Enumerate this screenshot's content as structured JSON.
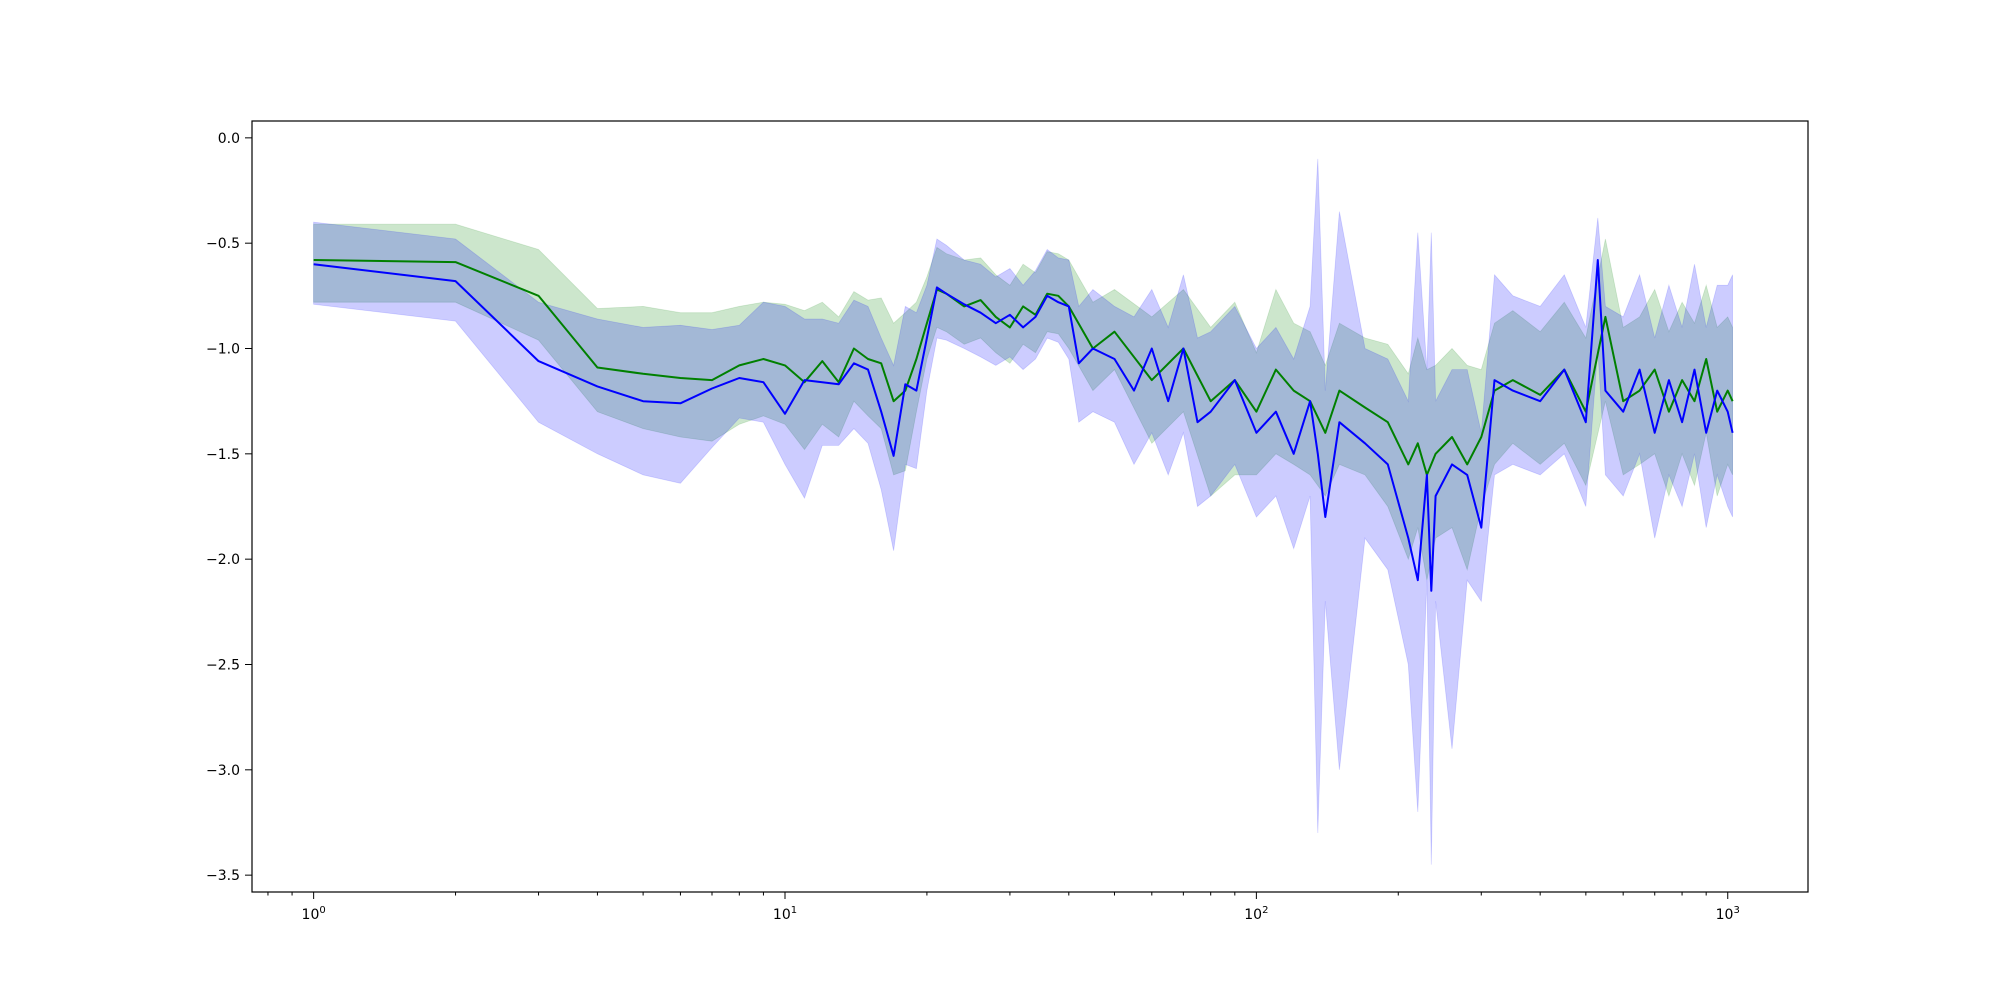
{
  "chart_data": {
    "type": "line",
    "title": "",
    "xlabel": "",
    "ylabel": "",
    "xscale": "log",
    "xlim": [
      0.74,
      1480
    ],
    "ylim": [
      -3.58,
      0.08
    ],
    "grid": false,
    "x_ticks": [
      {
        "value": 1,
        "mantissa": "10",
        "exp": "0"
      },
      {
        "value": 10,
        "mantissa": "10",
        "exp": "1"
      },
      {
        "value": 100,
        "mantissa": "10",
        "exp": "2"
      },
      {
        "value": 1000,
        "mantissa": "10",
        "exp": "3"
      }
    ],
    "y_ticks": [
      {
        "value": 0.0,
        "label": "0.0"
      },
      {
        "value": -0.5,
        "label": "−0.5"
      },
      {
        "value": -1.0,
        "label": "−1.0"
      },
      {
        "value": -1.5,
        "label": "−1.5"
      },
      {
        "value": -2.0,
        "label": "−2.0"
      },
      {
        "value": -2.5,
        "label": "−2.5"
      },
      {
        "value": -3.0,
        "label": "−3.0"
      },
      {
        "value": -3.5,
        "label": "−3.5"
      }
    ],
    "series": [
      {
        "color": "#008000",
        "band_color": "#008000",
        "band_opacity": 0.2,
        "x": [
          1,
          2,
          3,
          4,
          5,
          6,
          7,
          8,
          9,
          10,
          11,
          12,
          13,
          14,
          15,
          16,
          17,
          18,
          19,
          20,
          21,
          22,
          24,
          26,
          28,
          30,
          32,
          34,
          36,
          38,
          40,
          45,
          50,
          60,
          70,
          80,
          90,
          100,
          110,
          120,
          130,
          140,
          150,
          170,
          190,
          210,
          220,
          230,
          240,
          260,
          280,
          300,
          320,
          350,
          400,
          450,
          500,
          550,
          600,
          650,
          700,
          750,
          800,
          850,
          900,
          950,
          1000,
          1024
        ],
        "y": [
          -0.58,
          -0.59,
          -0.75,
          -1.09,
          -1.12,
          -1.14,
          -1.15,
          -1.08,
          -1.05,
          -1.08,
          -1.16,
          -1.06,
          -1.16,
          -1.0,
          -1.05,
          -1.07,
          -1.25,
          -1.2,
          -1.05,
          -0.88,
          -0.72,
          -0.74,
          -0.8,
          -0.77,
          -0.85,
          -0.9,
          -0.8,
          -0.84,
          -0.74,
          -0.75,
          -0.8,
          -1.0,
          -0.92,
          -1.15,
          -1.0,
          -1.25,
          -1.15,
          -1.3,
          -1.1,
          -1.2,
          -1.25,
          -1.4,
          -1.2,
          -1.28,
          -1.35,
          -1.55,
          -1.45,
          -1.6,
          -1.5,
          -1.42,
          -1.55,
          -1.42,
          -1.2,
          -1.15,
          -1.22,
          -1.1,
          -1.3,
          -0.85,
          -1.25,
          -1.2,
          -1.1,
          -1.3,
          -1.15,
          -1.25,
          -1.05,
          -1.3,
          -1.2,
          -1.25
        ],
        "lower": [
          -0.78,
          -0.78,
          -0.96,
          -1.3,
          -1.38,
          -1.42,
          -1.44,
          -1.36,
          -1.32,
          -1.36,
          -1.48,
          -1.36,
          -1.42,
          -1.25,
          -1.32,
          -1.38,
          -1.6,
          -1.58,
          -1.3,
          -1.05,
          -0.9,
          -0.92,
          -0.98,
          -0.95,
          -1.02,
          -1.07,
          -0.98,
          -1.02,
          -0.92,
          -0.93,
          -1.0,
          -1.2,
          -1.1,
          -1.45,
          -1.3,
          -1.7,
          -1.6,
          -1.6,
          -1.5,
          -1.55,
          -1.6,
          -1.7,
          -1.55,
          -1.6,
          -1.75,
          -2.0,
          -1.85,
          -2.1,
          -1.9,
          -1.85,
          -2.05,
          -1.75,
          -1.55,
          -1.45,
          -1.55,
          -1.45,
          -1.65,
          -1.25,
          -1.6,
          -1.55,
          -1.5,
          -1.7,
          -1.5,
          -1.65,
          -1.4,
          -1.7,
          -1.55,
          -1.6
        ],
        "upper": [
          -0.41,
          -0.41,
          -0.53,
          -0.81,
          -0.8,
          -0.83,
          -0.83,
          -0.8,
          -0.78,
          -0.79,
          -0.82,
          -0.78,
          -0.85,
          -0.73,
          -0.77,
          -0.76,
          -0.88,
          -0.83,
          -0.78,
          -0.66,
          -0.52,
          -0.55,
          -0.58,
          -0.57,
          -0.65,
          -0.7,
          -0.6,
          -0.64,
          -0.54,
          -0.55,
          -0.58,
          -0.78,
          -0.72,
          -0.85,
          -0.72,
          -0.9,
          -0.78,
          -1.02,
          -0.72,
          -0.88,
          -0.92,
          -1.08,
          -0.88,
          -0.95,
          -0.98,
          -1.12,
          -0.95,
          -1.1,
          -1.08,
          -1.0,
          -1.08,
          -1.1,
          -0.88,
          -0.82,
          -0.92,
          -0.78,
          -0.95,
          -0.48,
          -0.9,
          -0.85,
          -0.72,
          -0.92,
          -0.78,
          -0.88,
          -0.7,
          -0.9,
          -0.85,
          -0.9
        ]
      },
      {
        "color": "#0000ff",
        "band_color": "#0000ff",
        "band_opacity": 0.2,
        "x": [
          1,
          2,
          3,
          4,
          5,
          6,
          7,
          8,
          9,
          10,
          11,
          12,
          13,
          14,
          15,
          16,
          17,
          18,
          19,
          20,
          21,
          22,
          24,
          26,
          28,
          30,
          32,
          34,
          36,
          38,
          40,
          42,
          45,
          50,
          55,
          60,
          65,
          70,
          75,
          80,
          90,
          100,
          110,
          120,
          130,
          135,
          140,
          150,
          170,
          190,
          210,
          220,
          230,
          235,
          240,
          260,
          280,
          300,
          320,
          350,
          400,
          450,
          500,
          530,
          550,
          600,
          650,
          700,
          750,
          800,
          850,
          900,
          950,
          1000,
          1024
        ],
        "y": [
          -0.6,
          -0.68,
          -1.06,
          -1.18,
          -1.25,
          -1.26,
          -1.19,
          -1.14,
          -1.16,
          -1.31,
          -1.15,
          -1.16,
          -1.17,
          -1.07,
          -1.1,
          -1.3,
          -1.51,
          -1.17,
          -1.2,
          -0.95,
          -0.71,
          -0.74,
          -0.79,
          -0.83,
          -0.88,
          -0.84,
          -0.9,
          -0.85,
          -0.75,
          -0.78,
          -0.8,
          -1.07,
          -1.0,
          -1.05,
          -1.2,
          -1.0,
          -1.25,
          -1.0,
          -1.35,
          -1.3,
          -1.15,
          -1.4,
          -1.3,
          -1.5,
          -1.25,
          -1.5,
          -1.8,
          -1.35,
          -1.45,
          -1.55,
          -1.9,
          -2.1,
          -1.6,
          -2.15,
          -1.7,
          -1.55,
          -1.6,
          -1.85,
          -1.15,
          -1.2,
          -1.25,
          -1.1,
          -1.35,
          -0.58,
          -1.2,
          -1.3,
          -1.1,
          -1.4,
          -1.15,
          -1.35,
          -1.1,
          -1.4,
          -1.2,
          -1.3,
          -1.4
        ],
        "lower": [
          -0.79,
          -0.87,
          -1.35,
          -1.5,
          -1.6,
          -1.64,
          -1.47,
          -1.33,
          -1.35,
          -1.55,
          -1.71,
          -1.46,
          -1.46,
          -1.38,
          -1.45,
          -1.67,
          -1.96,
          -1.55,
          -1.57,
          -1.2,
          -0.95,
          -0.96,
          -1.0,
          -1.04,
          -1.08,
          -1.04,
          -1.1,
          -1.05,
          -0.95,
          -0.97,
          -1.05,
          -1.35,
          -1.3,
          -1.35,
          -1.55,
          -1.4,
          -1.6,
          -1.4,
          -1.75,
          -1.7,
          -1.55,
          -1.8,
          -1.7,
          -1.95,
          -1.7,
          -3.3,
          -2.2,
          -3.0,
          -1.9,
          -2.05,
          -2.5,
          -3.2,
          -2.1,
          -3.45,
          -2.2,
          -2.9,
          -2.1,
          -2.2,
          -1.6,
          -1.55,
          -1.6,
          -1.5,
          -1.75,
          -1.0,
          -1.6,
          -1.7,
          -1.5,
          -1.9,
          -1.6,
          -1.75,
          -1.5,
          -1.85,
          -1.6,
          -1.75,
          -1.8
        ],
        "upper": [
          -0.4,
          -0.48,
          -0.78,
          -0.86,
          -0.9,
          -0.89,
          -0.91,
          -0.89,
          -0.78,
          -0.8,
          -0.86,
          -0.86,
          -0.88,
          -0.77,
          -0.8,
          -0.95,
          -1.08,
          -0.8,
          -0.83,
          -0.7,
          -0.48,
          -0.51,
          -0.58,
          -0.6,
          -0.66,
          -0.62,
          -0.7,
          -0.63,
          -0.53,
          -0.57,
          -0.58,
          -0.8,
          -0.72,
          -0.8,
          -0.85,
          -0.72,
          -0.9,
          -0.65,
          -0.95,
          -0.92,
          -0.8,
          -1.0,
          -0.9,
          -1.05,
          -0.8,
          -0.1,
          -1.2,
          -0.35,
          -1.0,
          -1.05,
          -1.25,
          -0.45,
          -1.1,
          -0.45,
          -1.25,
          -1.1,
          -1.1,
          -1.4,
          -0.65,
          -0.75,
          -0.8,
          -0.65,
          -0.9,
          -0.38,
          -0.8,
          -0.85,
          -0.65,
          -0.95,
          -0.7,
          -0.9,
          -0.6,
          -0.9,
          -0.7,
          -0.7,
          -0.65
        ]
      }
    ]
  }
}
